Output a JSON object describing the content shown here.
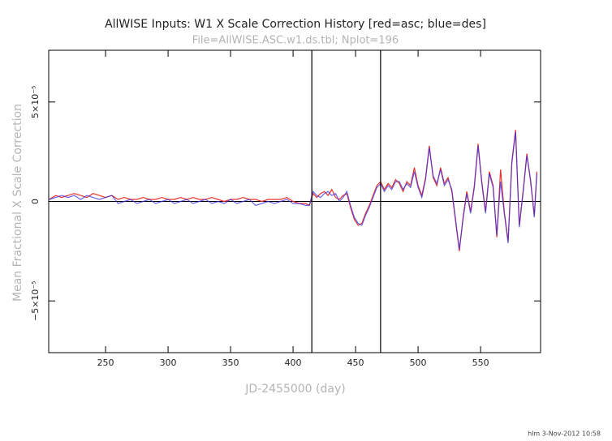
{
  "chart_data": {
    "type": "line",
    "title": "AllWISE Inputs: W1 X Scale Correction History [red=asc; blue=des]",
    "subtitle": "File=AllWISE.ASC.w1.ds.tbl; Nplot=196",
    "x_label": "JD-2455000 (day)",
    "y_label": "Mean Fractional X Scale Correction",
    "footer": "hlm  3-Nov-2012 10:58",
    "xlim": [
      204.5,
      598
    ],
    "ylim": [
      -7.6e-05,
      7.6e-05
    ],
    "xticks": [
      250,
      300,
      350,
      400,
      450,
      500,
      550
    ],
    "yticks": [
      {
        "value": -5e-05,
        "label": "−5×10⁻⁵"
      },
      0,
      {
        "value": 5e-05,
        "label": "5×10⁻⁵"
      }
    ],
    "vlines": [
      415,
      470
    ],
    "hlines": [
      0
    ],
    "x": [
      205,
      210,
      215,
      220,
      225,
      230,
      235,
      240,
      245,
      250,
      255,
      260,
      265,
      270,
      275,
      280,
      285,
      290,
      295,
      300,
      305,
      310,
      315,
      320,
      325,
      330,
      335,
      340,
      345,
      350,
      355,
      360,
      365,
      370,
      375,
      380,
      385,
      390,
      395,
      400,
      405,
      410,
      413,
      416,
      419,
      422,
      425,
      428,
      431,
      434,
      437,
      440,
      443,
      446,
      449,
      452,
      455,
      458,
      461,
      464,
      467,
      470,
      473,
      476,
      479,
      482,
      485,
      488,
      491,
      494,
      497,
      500,
      503,
      506,
      509,
      512,
      515,
      518,
      521,
      524,
      527,
      530,
      533,
      536,
      539,
      542,
      545,
      548,
      551,
      554,
      557,
      560,
      563,
      566,
      569,
      572,
      575,
      578,
      581,
      584,
      587,
      590,
      593,
      595
    ],
    "series": [
      {
        "name": "asc",
        "color": "#e8322a",
        "values": [
          1e-06,
          3e-06,
          2e-06,
          3e-06,
          4e-06,
          3e-06,
          2e-06,
          4e-06,
          3e-06,
          2e-06,
          3e-06,
          1e-06,
          2e-06,
          1e-06,
          1e-06,
          2e-06,
          1e-06,
          1e-06,
          2e-06,
          1e-06,
          1e-06,
          2e-06,
          1e-06,
          2e-06,
          1e-06,
          1e-06,
          2e-06,
          1e-06,
          0,
          1e-06,
          1e-06,
          2e-06,
          1e-06,
          1e-06,
          0,
          1e-06,
          1e-06,
          1e-06,
          2e-06,
          0,
          -1e-06,
          -1e-06,
          -2e-06,
          4e-06,
          2e-06,
          4e-06,
          5e-06,
          3e-06,
          6e-06,
          2e-06,
          1e-06,
          3e-06,
          4e-06,
          -3e-06,
          -9e-06,
          -1.2e-05,
          -1.1e-05,
          -6e-06,
          -2e-06,
          3e-06,
          8e-06,
          1e-05,
          6e-06,
          9e-06,
          7e-06,
          1.1e-05,
          9e-06,
          5e-06,
          1e-05,
          8e-06,
          1.7e-05,
          8e-06,
          3e-06,
          1.2e-05,
          2.8e-05,
          1.2e-05,
          8e-06,
          1.7e-05,
          9e-06,
          1.2e-05,
          5e-06,
          -1e-05,
          -2.5e-05,
          -8e-06,
          5e-06,
          -5e-06,
          8e-06,
          2.9e-05,
          1e-05,
          -5e-06,
          1.5e-05,
          8e-06,
          -1.8e-05,
          1.6e-05,
          -5e-06,
          -2e-05,
          2e-05,
          3.6e-05,
          -1.2e-05,
          5e-06,
          2.4e-05,
          1e-05,
          -7e-06,
          1.5e-05
        ]
      },
      {
        "name": "des",
        "color": "#3a2ee6",
        "values": [
          1e-06,
          2e-06,
          3e-06,
          2e-06,
          3e-06,
          1e-06,
          3e-06,
          2e-06,
          1e-06,
          2e-06,
          3e-06,
          -1e-06,
          0,
          1e-06,
          -1e-06,
          0,
          1e-06,
          -1e-06,
          0,
          1e-06,
          -1e-06,
          0,
          1e-06,
          -1e-06,
          0,
          1e-06,
          -1e-06,
          0,
          -1e-06,
          1e-06,
          -1e-06,
          0,
          1e-06,
          -2e-06,
          -1e-06,
          0,
          -1e-06,
          0,
          1e-06,
          -1e-06,
          -1e-06,
          -2e-06,
          -2e-06,
          5e-06,
          3e-06,
          2e-06,
          4e-06,
          5e-06,
          3e-06,
          4e-06,
          0,
          2e-06,
          5e-06,
          -2e-06,
          -8e-06,
          -1.1e-05,
          -1.2e-05,
          -7e-06,
          -3e-06,
          2e-06,
          7e-06,
          9e-06,
          5e-06,
          8e-06,
          6e-06,
          1e-05,
          1e-05,
          6e-06,
          9e-06,
          7e-06,
          1.5e-05,
          7e-06,
          2e-06,
          1.1e-05,
          2.7e-05,
          1.3e-05,
          9e-06,
          1.6e-05,
          8e-06,
          1.1e-05,
          6e-06,
          -9e-06,
          -2.4e-05,
          -9e-06,
          4e-06,
          -6e-06,
          7e-06,
          2.8e-05,
          9e-06,
          -6e-06,
          1.4e-05,
          7e-06,
          -1.7e-05,
          1e-05,
          -6e-06,
          -2.1e-05,
          1.9e-05,
          3.5e-05,
          -1.3e-05,
          4e-06,
          2.3e-05,
          1.1e-05,
          -8e-06,
          1.4e-05
        ]
      }
    ]
  }
}
